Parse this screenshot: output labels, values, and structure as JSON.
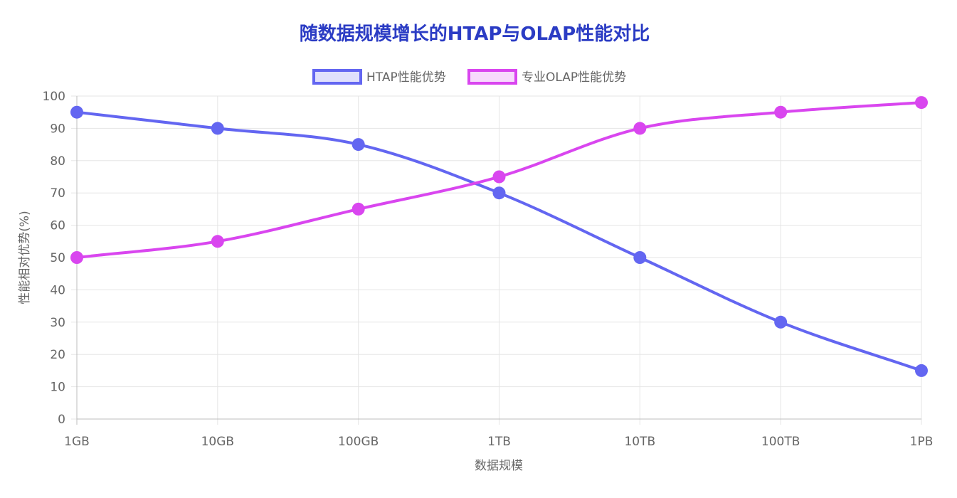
{
  "colors": {
    "title": "#2b3cc4",
    "htap": "#6366f1",
    "olap": "#d946ef",
    "grid": "#e5e5e5",
    "axis": "#bdbdbd",
    "text": "#666666"
  },
  "chart_data": {
    "type": "line",
    "title": "随数据规模增长的HTAP与OLAP性能对比",
    "xlabel": "数据规模",
    "ylabel": "性能相对优势(%)",
    "categories": [
      "1GB",
      "10GB",
      "100GB",
      "1TB",
      "10TB",
      "100TB",
      "1PB"
    ],
    "ylim": [
      0,
      100
    ],
    "yticks": [
      0,
      10,
      20,
      30,
      40,
      50,
      60,
      70,
      80,
      90,
      100
    ],
    "grid": true,
    "legend_position": "top-center",
    "series": [
      {
        "name": "HTAP性能优势",
        "color": "#6366f1",
        "values": [
          95,
          90,
          85,
          70,
          50,
          30,
          15
        ]
      },
      {
        "name": "专业OLAP性能优势",
        "color": "#d946ef",
        "values": [
          50,
          55,
          65,
          75,
          90,
          95,
          98
        ]
      }
    ]
  }
}
